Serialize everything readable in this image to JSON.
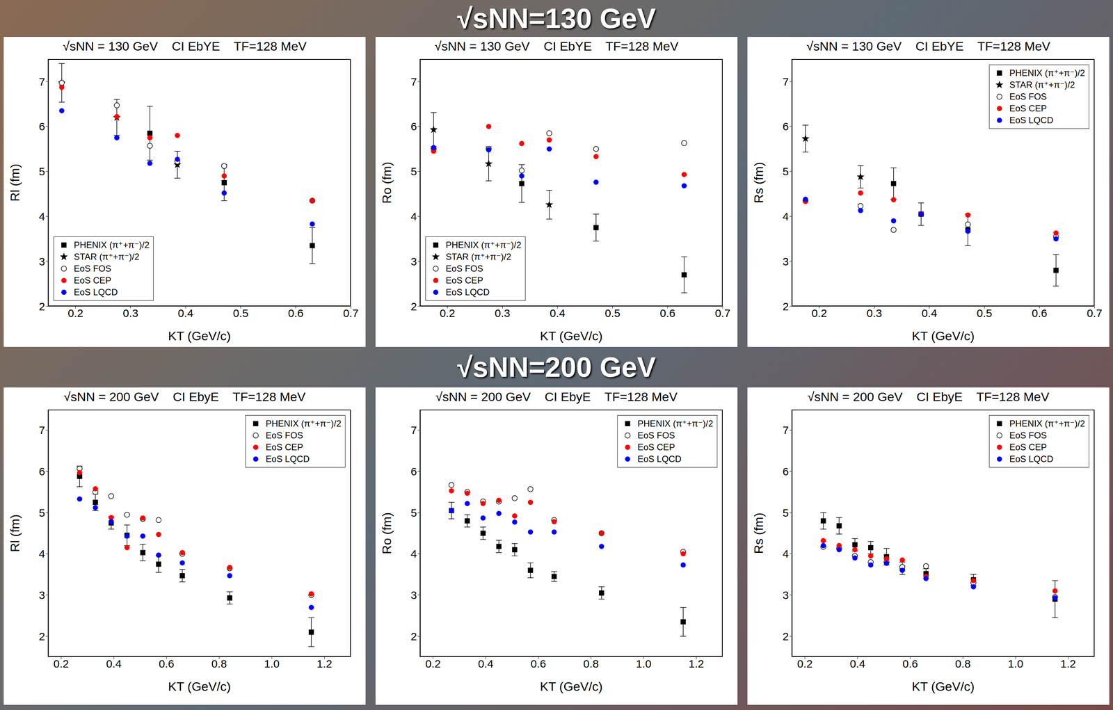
{
  "headings": [
    "√sNN=130 GeV",
    "√sNN=200 GeV"
  ],
  "chart_data": [
    {
      "type": "scatter",
      "title": "√sNN = 130 GeV    CI EbYE    TF=128 MeV",
      "x_label": "KT (GeV/c)",
      "y_label": "Rl (fm)",
      "xlim": [
        0.15,
        0.7
      ],
      "xticks": [
        0.2,
        0.3,
        0.4,
        0.5,
        0.6,
        0.7
      ],
      "ylim": [
        2,
        7.5
      ],
      "yticks": [
        2,
        3,
        4,
        5,
        6,
        7
      ],
      "legend": "lower left",
      "series": [
        {
          "name": "PHENIX (π⁺+π⁻)/2",
          "color": "#000000",
          "marker": "square",
          "x": [
            0.335,
            0.47,
            0.63
          ],
          "values": [
            5.85,
            4.75,
            3.35
          ],
          "error": [
            0.6,
            0.4,
            0.4
          ]
        },
        {
          "name": "STAR (π⁺+π⁻)/2",
          "color": "#000000",
          "marker": "star",
          "x": [
            0.175,
            0.275,
            0.385
          ],
          "values": [
            6.97,
            6.2,
            5.15
          ],
          "error": [
            0.43,
            0.4,
            0.3
          ]
        },
        {
          "name": "EoS FOS",
          "color": "#000000",
          "marker": "open_circle",
          "x": [
            0.175,
            0.275,
            0.335,
            0.385,
            0.47,
            0.63
          ],
          "values": [
            6.97,
            6.47,
            5.57,
            5.22,
            5.12,
            4.35
          ]
        },
        {
          "name": "EoS CEP",
          "color": "#ff0000",
          "marker": "circle",
          "x": [
            0.175,
            0.275,
            0.335,
            0.385,
            0.47,
            0.63
          ],
          "values": [
            6.87,
            6.22,
            5.75,
            5.8,
            4.9,
            4.35
          ]
        },
        {
          "name": "EoS LQCD",
          "color": "#0000ff",
          "marker": "circle",
          "x": [
            0.175,
            0.275,
            0.335,
            0.385,
            0.47,
            0.63
          ],
          "values": [
            6.35,
            5.75,
            5.18,
            5.27,
            4.52,
            3.83
          ]
        }
      ]
    },
    {
      "type": "scatter",
      "title": "√sNN = 130 GeV    CI EbYE    TF=128 MeV",
      "x_label": "KT (GeV/c)",
      "y_label": "Ro (fm)",
      "xlim": [
        0.15,
        0.7
      ],
      "xticks": [
        0.2,
        0.3,
        0.4,
        0.5,
        0.6,
        0.7
      ],
      "ylim": [
        2,
        7.5
      ],
      "yticks": [
        2,
        3,
        4,
        5,
        6,
        7
      ],
      "legend": "lower left",
      "series": [
        {
          "name": "PHENIX (π⁺+π⁻)/2",
          "color": "#000000",
          "marker": "square",
          "x": [
            0.335,
            0.47,
            0.63
          ],
          "values": [
            4.73,
            3.75,
            2.7
          ],
          "error": [
            0.42,
            0.3,
            0.4
          ]
        },
        {
          "name": "STAR (π⁺+π⁻)/2",
          "color": "#000000",
          "marker": "star",
          "x": [
            0.175,
            0.275,
            0.385
          ],
          "values": [
            5.93,
            5.17,
            4.26
          ],
          "error": [
            0.38,
            0.38,
            0.32
          ]
        },
        {
          "name": "EoS FOS",
          "color": "#000000",
          "marker": "open_circle",
          "x": [
            0.175,
            0.275,
            0.335,
            0.385,
            0.47,
            0.63
          ],
          "values": [
            5.5,
            5.5,
            5.02,
            5.85,
            5.5,
            5.63
          ]
        },
        {
          "name": "EoS CEP",
          "color": "#ff0000",
          "marker": "circle",
          "x": [
            0.175,
            0.275,
            0.335,
            0.385,
            0.47,
            0.63
          ],
          "values": [
            5.45,
            6.0,
            5.62,
            5.7,
            5.33,
            4.93
          ]
        },
        {
          "name": "EoS LQCD",
          "color": "#0000ff",
          "marker": "circle",
          "x": [
            0.175,
            0.275,
            0.335,
            0.385,
            0.47,
            0.63
          ],
          "values": [
            5.53,
            5.48,
            4.9,
            5.5,
            4.76,
            4.68
          ]
        }
      ]
    },
    {
      "type": "scatter",
      "title": "√sNN = 130 GeV    CI EbYE    TF=128 MeV",
      "x_label": "KT (GeV/c)",
      "y_label": "Rs (fm)",
      "xlim": [
        0.15,
        0.7
      ],
      "xticks": [
        0.2,
        0.3,
        0.4,
        0.5,
        0.6,
        0.7
      ],
      "ylim": [
        2,
        7.5
      ],
      "yticks": [
        2,
        3,
        4,
        5,
        6,
        7
      ],
      "legend": "upper right",
      "series": [
        {
          "name": "PHENIX (π⁺+π⁻)/2",
          "color": "#000000",
          "marker": "square",
          "x": [
            0.335,
            0.385,
            0.47,
            0.63
          ],
          "values": [
            4.73,
            4.05,
            3.7,
            2.8
          ],
          "error": [
            0.35,
            0.25,
            0.35,
            0.35
          ]
        },
        {
          "name": "STAR (π⁺+π⁻)/2",
          "color": "#000000",
          "marker": "star",
          "x": [
            0.175,
            0.275
          ],
          "values": [
            5.73,
            4.88
          ],
          "error": [
            0.3,
            0.25
          ]
        },
        {
          "name": "EoS FOS",
          "color": "#000000",
          "marker": "open_circle",
          "x": [
            0.175,
            0.275,
            0.335,
            0.385,
            0.47,
            0.63
          ],
          "values": [
            4.35,
            4.23,
            3.7,
            4.05,
            3.82,
            3.55
          ]
        },
        {
          "name": "EoS CEP",
          "color": "#ff0000",
          "marker": "circle",
          "x": [
            0.175,
            0.275,
            0.335,
            0.385,
            0.47,
            0.63
          ],
          "values": [
            4.33,
            4.52,
            4.37,
            4.06,
            4.03,
            3.63
          ]
        },
        {
          "name": "EoS LQCD",
          "color": "#0000ff",
          "marker": "circle",
          "x": [
            0.175,
            0.275,
            0.335,
            0.385,
            0.47,
            0.63
          ],
          "values": [
            4.38,
            4.13,
            3.9,
            4.05,
            3.67,
            3.5
          ]
        }
      ]
    },
    {
      "type": "scatter",
      "title": "√sNN = 200 GeV    CI EbyE    TF=128 MeV",
      "x_label": "KT (GeV/c)",
      "y_label": "Rl (fm)",
      "xlim": [
        0.15,
        1.3
      ],
      "xticks": [
        0.2,
        0.4,
        0.6,
        0.8,
        {
          "value": 1,
          "label": "1.0"
        },
        1.2
      ],
      "ylim": [
        1.5,
        7.5
      ],
      "yticks": [
        2,
        3,
        4,
        5,
        6,
        7
      ],
      "legend": "upper right",
      "series": [
        {
          "name": "PHENIX (π⁺+π⁻)/2",
          "color": "#000000",
          "marker": "square",
          "x": [
            0.27,
            0.33,
            0.39,
            0.45,
            0.51,
            0.57,
            0.66,
            0.84,
            1.15
          ],
          "values": [
            5.88,
            5.25,
            4.75,
            4.45,
            4.03,
            3.75,
            3.47,
            2.93,
            2.1
          ],
          "error": [
            0.25,
            0.2,
            0.15,
            0.25,
            0.2,
            0.2,
            0.15,
            0.15,
            0.35
          ]
        },
        {
          "name": "EoS FOS",
          "color": "#000000",
          "marker": "open_circle",
          "x": [
            0.27,
            0.33,
            0.39,
            0.45,
            0.51,
            0.57,
            0.66,
            0.84,
            1.15
          ],
          "values": [
            6.07,
            5.5,
            5.4,
            4.95,
            4.85,
            4.82,
            4.0,
            3.65,
            3.0
          ]
        },
        {
          "name": "EoS CEP",
          "color": "#ff0000",
          "marker": "circle",
          "x": [
            0.27,
            0.33,
            0.39,
            0.45,
            0.51,
            0.57,
            0.66,
            0.84,
            1.15
          ],
          "values": [
            5.97,
            5.58,
            4.88,
            4.15,
            4.87,
            4.47,
            4.03,
            3.67,
            3.03
          ]
        },
        {
          "name": "EoS LQCD",
          "color": "#0000ff",
          "marker": "circle",
          "x": [
            0.27,
            0.33,
            0.39,
            0.45,
            0.51,
            0.57,
            0.66,
            0.84,
            1.15
          ],
          "values": [
            5.33,
            5.12,
            4.78,
            4.43,
            4.43,
            3.97,
            3.78,
            3.47,
            2.7
          ]
        }
      ]
    },
    {
      "type": "scatter",
      "title": "√sNN = 200 GeV    CI EbyE    TF=128 MeV",
      "x_label": "KT (GeV/c)",
      "y_label": "Ro (fm)",
      "xlim": [
        0.15,
        1.3
      ],
      "xticks": [
        0.2,
        0.4,
        0.6,
        0.8,
        {
          "value": 1,
          "label": "1.0"
        },
        1.2
      ],
      "ylim": [
        1.5,
        7.5
      ],
      "yticks": [
        2,
        3,
        4,
        5,
        6,
        7
      ],
      "legend": "upper right",
      "series": [
        {
          "name": "PHENIX (π⁺+π⁻)/2",
          "color": "#000000",
          "marker": "square",
          "x": [
            0.27,
            0.33,
            0.39,
            0.45,
            0.51,
            0.57,
            0.66,
            0.84,
            1.15
          ],
          "values": [
            5.05,
            4.8,
            4.5,
            4.18,
            4.1,
            3.6,
            3.45,
            3.05,
            2.35
          ],
          "error": [
            0.2,
            0.15,
            0.15,
            0.15,
            0.15,
            0.18,
            0.12,
            0.15,
            0.35
          ]
        },
        {
          "name": "EoS FOS",
          "color": "#000000",
          "marker": "open_circle",
          "x": [
            0.27,
            0.33,
            0.39,
            0.45,
            0.51,
            0.57,
            0.66,
            0.84,
            1.15
          ],
          "values": [
            5.67,
            5.5,
            5.27,
            5.27,
            5.35,
            5.57,
            4.82,
            4.5,
            4.05
          ]
        },
        {
          "name": "EoS CEP",
          "color": "#ff0000",
          "marker": "circle",
          "x": [
            0.27,
            0.33,
            0.39,
            0.45,
            0.51,
            0.57,
            0.66,
            0.84,
            1.15
          ],
          "values": [
            5.53,
            5.47,
            5.22,
            5.3,
            4.92,
            5.25,
            4.78,
            4.5,
            4.0
          ]
        },
        {
          "name": "EoS LQCD",
          "color": "#0000ff",
          "marker": "circle",
          "x": [
            0.27,
            0.33,
            0.39,
            0.45,
            0.51,
            0.57,
            0.66,
            0.84,
            1.15
          ],
          "values": [
            5.05,
            5.22,
            4.87,
            4.98,
            4.77,
            4.53,
            4.53,
            4.18,
            3.73
          ]
        }
      ]
    },
    {
      "type": "scatter",
      "title": "√sNN = 200 GeV    CI EbyE    TF=128 MeV",
      "x_label": "KT (GeV/c)",
      "y_label": "Rs (fm)",
      "xlim": [
        0.15,
        1.3
      ],
      "xticks": [
        0.2,
        0.4,
        0.6,
        0.8,
        {
          "value": 1,
          "label": "1.0"
        },
        1.2
      ],
      "ylim": [
        1.5,
        7.5
      ],
      "yticks": [
        2,
        3,
        4,
        5,
        6,
        7
      ],
      "legend": "upper right",
      "series": [
        {
          "name": "PHENIX (π⁺+π⁻)/2",
          "color": "#000000",
          "marker": "square",
          "x": [
            0.27,
            0.33,
            0.39,
            0.45,
            0.51,
            0.57,
            0.66,
            0.84,
            1.15
          ],
          "values": [
            4.8,
            4.68,
            4.22,
            4.15,
            3.93,
            3.65,
            3.52,
            3.37,
            2.9
          ],
          "error": [
            0.2,
            0.2,
            0.15,
            0.15,
            0.2,
            0.15,
            0.12,
            0.13,
            0.45
          ]
        },
        {
          "name": "EoS FOS",
          "color": "#000000",
          "marker": "open_circle",
          "x": [
            0.27,
            0.33,
            0.39,
            0.45,
            0.51,
            0.57,
            0.66,
            0.84,
            1.15
          ],
          "values": [
            4.17,
            4.13,
            3.95,
            3.8,
            3.8,
            3.68,
            3.7,
            3.3,
            2.95
          ]
        },
        {
          "name": "EoS CEP",
          "color": "#ff0000",
          "marker": "circle",
          "x": [
            0.27,
            0.33,
            0.39,
            0.45,
            0.51,
            0.57,
            0.66,
            0.84,
            1.15
          ],
          "values": [
            4.32,
            4.2,
            4.1,
            3.95,
            3.88,
            3.85,
            3.45,
            3.35,
            3.1
          ]
        },
        {
          "name": "EoS LQCD",
          "color": "#0000ff",
          "marker": "circle",
          "x": [
            0.27,
            0.33,
            0.39,
            0.45,
            0.51,
            0.57,
            0.66,
            0.84,
            1.15
          ],
          "values": [
            4.2,
            4.1,
            3.9,
            3.73,
            3.77,
            3.6,
            3.4,
            3.2,
            2.93
          ]
        }
      ]
    }
  ]
}
